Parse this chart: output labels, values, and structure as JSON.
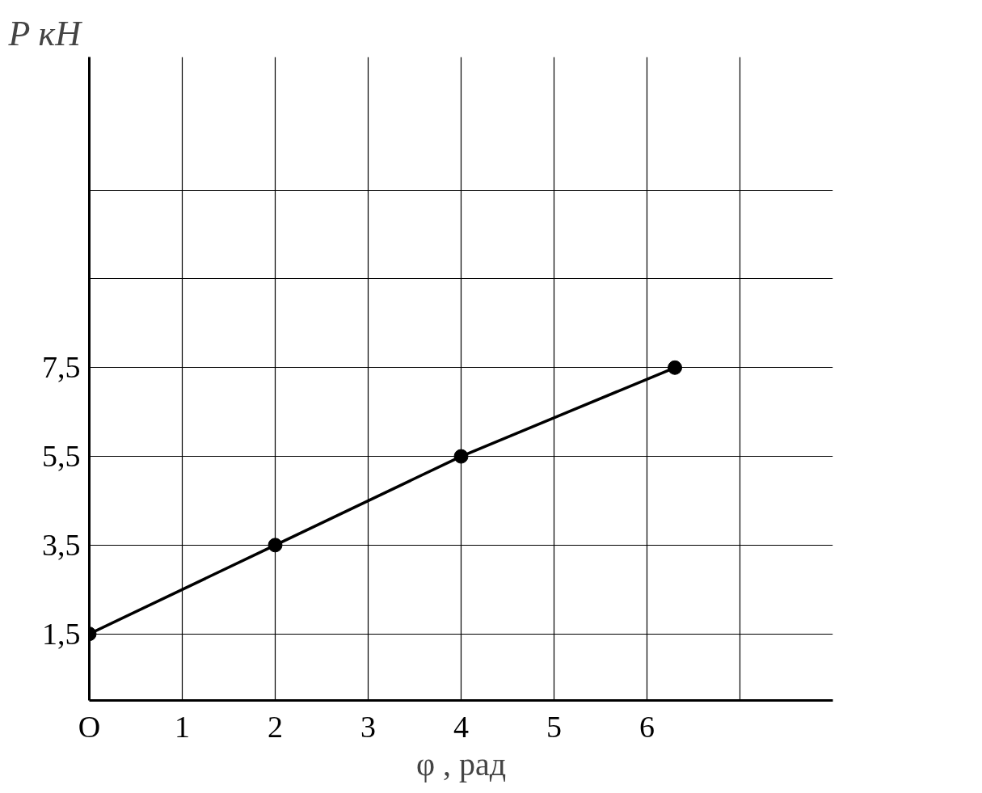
{
  "chart_data": {
    "type": "line",
    "xlabel": "φ , рад",
    "ylabel": "P кН",
    "x": [
      0,
      2,
      4,
      6.3
    ],
    "series": [
      {
        "color": "#000000",
        "values": [
          1.5,
          3.5,
          5.5,
          7.5
        ]
      }
    ],
    "xlim": [
      0,
      8
    ],
    "ylim": [
      0,
      14.5
    ],
    "xticks": [
      {
        "value": 0,
        "label": "O"
      },
      1,
      2,
      3,
      4,
      5,
      6,
      {
        "value": 7,
        "label": null
      }
    ],
    "yticks": [
      {
        "value": 1.5,
        "label": "1,5"
      },
      {
        "value": 3.5,
        "label": "3,5"
      },
      {
        "value": 5.5,
        "label": "5,5"
      },
      {
        "value": 7.5,
        "label": "7,5"
      },
      {
        "value": 9.5,
        "label": null
      },
      {
        "value": 11.5,
        "label": null
      }
    ],
    "grid": true,
    "marker": "circle",
    "line_style": "solid"
  }
}
